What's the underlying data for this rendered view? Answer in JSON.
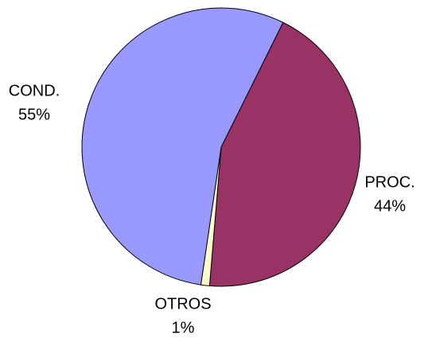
{
  "chart_data": {
    "type": "pie",
    "categories": [
      "PROC.",
      "OTROS",
      "COND."
    ],
    "values": [
      44,
      1,
      55
    ],
    "value_labels": [
      "44%",
      "1%",
      "55%"
    ],
    "colors": [
      "#993366",
      "#ffffcc",
      "#9999ff"
    ]
  }
}
